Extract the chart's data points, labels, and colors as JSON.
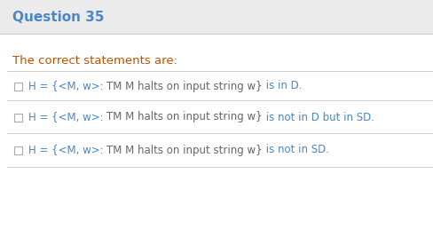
{
  "title": "Question 35",
  "title_color": "#4a86c8",
  "title_fontsize": 11,
  "title_bg_color": "#ebebeb",
  "body_bg_color": "#ffffff",
  "prompt_text": "The correct statements are:",
  "prompt_color": "#c05000",
  "prompt_fontsize": 9.5,
  "option_segments": [
    [
      {
        "text": "H = {<M, w>: ",
        "color": "#4a86c8"
      },
      {
        "text": "TM M halts on input string w}",
        "color": "#666666"
      },
      {
        "text": " is in D.",
        "color": "#4a86c8"
      }
    ],
    [
      {
        "text": "H = {<M, w>: ",
        "color": "#4a86c8"
      },
      {
        "text": "TM M halts on input string w}",
        "color": "#666666"
      },
      {
        "text": " is not in D but in SD.",
        "color": "#4a86c8"
      }
    ],
    [
      {
        "text": "H = {<M, w>: ",
        "color": "#4a86c8"
      },
      {
        "text": "TM M halts on input string w}",
        "color": "#666666"
      },
      {
        "text": " is not in SD.",
        "color": "#4a86c8"
      }
    ]
  ],
  "option_fontsize": 8.5,
  "divider_color": "#cccccc",
  "checkbox_color": "#aaaaaa",
  "separator_line_color": "#d0d0d0",
  "fig_width": 4.89,
  "fig_height": 2.58,
  "dpi": 100
}
